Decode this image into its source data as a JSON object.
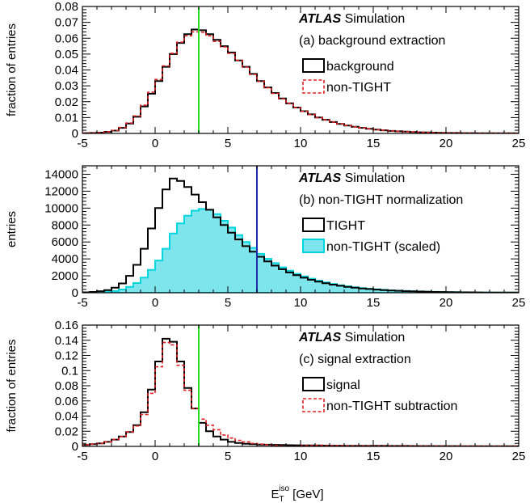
{
  "x_axis_label": {
    "main": "E",
    "sup": "iso",
    "sub": "T",
    "unit": " [GeV]"
  },
  "colors": {
    "green_line": "#22dd22",
    "blue_line": "#1a2fa8",
    "cyan_fill": "#7fe5ec",
    "cyan_edge": "#00d5e0",
    "red_dash": "#e02020"
  },
  "chart_data": [
    {
      "type": "histogram",
      "panel": "a",
      "ylabel": "fraction of entries",
      "xlim": [
        -5,
        25
      ],
      "ylim": [
        0,
        0.08
      ],
      "x_ticks": [
        -5,
        0,
        5,
        10,
        15,
        20,
        25
      ],
      "x_tick_labels": [
        "-5",
        "0",
        "5",
        "10",
        "15",
        "20",
        "25"
      ],
      "y_ticks": [
        0,
        0.01,
        0.02,
        0.03,
        0.04,
        0.05,
        0.06,
        0.07,
        0.08
      ],
      "y_tick_labels": [
        "0",
        "0.01",
        "0.02",
        "0.03",
        "0.04",
        "0.05",
        "0.06",
        "0.07",
        "0.08"
      ],
      "brand": "ATLAS",
      "brand_suffix": " Simulation",
      "annotation": "(a) background extraction",
      "vline": 3,
      "vline_color": "green",
      "bin_edges": [
        -5,
        -4.5,
        -4,
        -3.5,
        -3,
        -2.5,
        -2,
        -1.5,
        -1,
        -0.5,
        0,
        0.5,
        1,
        1.5,
        2,
        2.5,
        3,
        3.5,
        4,
        4.5,
        5,
        5.5,
        6,
        6.5,
        7,
        7.5,
        8,
        8.5,
        9,
        9.5,
        10,
        10.5,
        11,
        11.5,
        12,
        12.5,
        13,
        13.5,
        14,
        14.5,
        15,
        15.5,
        16,
        16.5,
        17,
        17.5,
        18,
        18.5,
        19,
        19.5,
        20,
        20.5,
        21,
        21.5,
        22,
        22.5,
        23,
        23.5,
        24,
        24.5,
        25
      ],
      "series": [
        {
          "name": "background",
          "style": "solid-black",
          "values": [
            0.0002,
            0.0003,
            0.0005,
            0.001,
            0.0018,
            0.0035,
            0.0062,
            0.0105,
            0.017,
            0.025,
            0.033,
            0.042,
            0.05,
            0.057,
            0.0625,
            0.0655,
            0.065,
            0.0625,
            0.059,
            0.055,
            0.051,
            0.046,
            0.042,
            0.0375,
            0.033,
            0.029,
            0.0255,
            0.022,
            0.019,
            0.0163,
            0.014,
            0.012,
            0.0101,
            0.0086,
            0.0072,
            0.006,
            0.005,
            0.0042,
            0.0035,
            0.0029,
            0.0024,
            0.002,
            0.0016,
            0.0013,
            0.0011,
            0.0009,
            0.0007,
            0.0006,
            0.0005,
            0.0004,
            0.0003,
            0.0003,
            0.0002,
            0.0002,
            0.0001,
            0.0001,
            0.0001,
            0.0001,
            0.0001,
            0.0001
          ]
        },
        {
          "name": "non-TIGHT",
          "style": "dashed-red",
          "values": [
            0.0002,
            0.0003,
            0.0005,
            0.0011,
            0.0019,
            0.0037,
            0.0065,
            0.011,
            0.0178,
            0.026,
            0.034,
            0.0425,
            0.0505,
            0.0575,
            0.0615,
            0.064,
            0.0638,
            0.0615,
            0.058,
            0.0545,
            0.0505,
            0.046,
            0.0418,
            0.0372,
            0.0328,
            0.0288,
            0.0252,
            0.0218,
            0.0189,
            0.0162,
            0.0139,
            0.0119,
            0.01,
            0.0085,
            0.0072,
            0.006,
            0.005,
            0.0042,
            0.0035,
            0.0029,
            0.0024,
            0.002,
            0.0016,
            0.0013,
            0.0011,
            0.0009,
            0.0007,
            0.0006,
            0.0005,
            0.0004,
            0.0003,
            0.0003,
            0.0002,
            0.0002,
            0.0001,
            0.0001,
            0.0001,
            0.0001,
            0.0001,
            0.0001
          ]
        }
      ]
    },
    {
      "type": "histogram",
      "panel": "b",
      "ylabel": "entries",
      "xlim": [
        -5,
        25
      ],
      "ylim": [
        0,
        15000
      ],
      "x_ticks": [
        -5,
        0,
        5,
        10,
        15,
        20,
        25
      ],
      "x_tick_labels": [
        "-5",
        "0",
        "5",
        "10",
        "15",
        "20",
        "25"
      ],
      "y_ticks": [
        0,
        2000,
        4000,
        6000,
        8000,
        10000,
        12000,
        14000
      ],
      "y_tick_labels": [
        "0",
        "2000",
        "4000",
        "6000",
        "8000",
        "10000",
        "12000",
        "14000"
      ],
      "brand": "ATLAS",
      "brand_suffix": " Simulation",
      "annotation": "(b) non-TIGHT normalization",
      "vline": 7,
      "vline_color": "blue",
      "bin_edges": [
        -5,
        -4.5,
        -4,
        -3.5,
        -3,
        -2.5,
        -2,
        -1.5,
        -1,
        -0.5,
        0,
        0.5,
        1,
        1.5,
        2,
        2.5,
        3,
        3.5,
        4,
        4.5,
        5,
        5.5,
        6,
        6.5,
        7,
        7.5,
        8,
        8.5,
        9,
        9.5,
        10,
        10.5,
        11,
        11.5,
        12,
        12.5,
        13,
        13.5,
        14,
        14.5,
        15,
        15.5,
        16,
        16.5,
        17,
        17.5,
        18,
        18.5,
        19,
        19.5,
        20,
        20.5,
        21,
        21.5,
        22,
        22.5,
        23,
        23.5,
        24,
        24.5,
        25
      ],
      "series": [
        {
          "name": "TIGHT",
          "style": "solid-black",
          "values": [
            50,
            100,
            180,
            320,
            600,
            1100,
            2000,
            3300,
            5200,
            7600,
            10000,
            12200,
            13500,
            13200,
            12500,
            11600,
            10700,
            9800,
            8900,
            8000,
            7100,
            6300,
            5500,
            4850,
            4250,
            3700,
            3200,
            2780,
            2400,
            2070,
            1780,
            1530,
            1310,
            1120,
            960,
            820,
            700,
            600,
            510,
            435,
            370,
            315,
            270,
            230,
            195,
            165,
            140,
            120,
            100,
            85,
            72,
            62,
            52,
            44,
            38,
            32,
            27,
            23,
            20,
            17
          ]
        },
        {
          "name": "non-TIGHT (scaled)",
          "style": "filled-cyan",
          "values": [
            15,
            30,
            60,
            110,
            200,
            380,
            700,
            1150,
            1800,
            2700,
            3800,
            5200,
            7000,
            8200,
            9100,
            9700,
            9900,
            9800,
            9300,
            8500,
            7700,
            6800,
            6000,
            5300,
            4600,
            4000,
            3500,
            3000,
            2600,
            2240,
            1930,
            1660,
            1420,
            1220,
            1040,
            890,
            760,
            650,
            550,
            470,
            400,
            340,
            290,
            245,
            210,
            178,
            150,
            128,
            108,
            92,
            78,
            66,
            56,
            48,
            40,
            34,
            29,
            25,
            21,
            18
          ]
        }
      ]
    },
    {
      "type": "histogram",
      "panel": "c",
      "ylabel": "fraction of entries",
      "xlim": [
        -5,
        25
      ],
      "ylim": [
        0,
        0.16
      ],
      "x_ticks": [
        -5,
        0,
        5,
        10,
        15,
        20,
        25
      ],
      "x_tick_labels": [
        "-5",
        "0",
        "5",
        "10",
        "15",
        "20",
        "25"
      ],
      "y_ticks": [
        0,
        0.02,
        0.04,
        0.06,
        0.08,
        0.1,
        0.12,
        0.14,
        0.16
      ],
      "y_tick_labels": [
        "0",
        "0.02",
        "0.04",
        "0.06",
        "0.08",
        "0.1",
        "0.12",
        "0.14",
        "0.16"
      ],
      "brand": "ATLAS",
      "brand_suffix": " Simulation",
      "annotation": "(c) signal extraction",
      "vline": 3,
      "vline_color": "green",
      "bin_edges": [
        -5,
        -4.5,
        -4,
        -3.5,
        -3,
        -2.5,
        -2,
        -1.5,
        -1,
        -0.5,
        0,
        0.5,
        1,
        1.5,
        2,
        2.5,
        3,
        3.5,
        4,
        4.5,
        5,
        5.5,
        6,
        6.5,
        7,
        7.5,
        8,
        8.5,
        9,
        9.5,
        10,
        10.5,
        11,
        11.5,
        12,
        12.5,
        13,
        13.5,
        14,
        14.5,
        15,
        15.5,
        16,
        16.5,
        17,
        17.5,
        18,
        18.5,
        19,
        19.5,
        20,
        20.5,
        21,
        21.5,
        22,
        22.5,
        23,
        23.5,
        24,
        24.5,
        25
      ],
      "series": [
        {
          "name": "signal",
          "style": "solid-black",
          "values": [
            0.002,
            0.003,
            0.004,
            0.006,
            0.009,
            0.013,
            0.019,
            0.028,
            0.045,
            0.075,
            0.112,
            0.142,
            0.138,
            0.112,
            0.077,
            0.05,
            0.031,
            0.02,
            0.013,
            0.009,
            0.006,
            0.0045,
            0.0035,
            0.003,
            0.0025,
            0.0022,
            0.002,
            0.0018,
            0.0016,
            0.0015,
            0.0014,
            0.0013,
            0.0012,
            0.0011,
            0.001,
            0.001,
            0.0009,
            0.0009,
            0.0008,
            0.0008,
            0.0007,
            0.0007,
            0.0006,
            0.0006,
            0.0006,
            0.0005,
            0.0005,
            0.0005,
            0.0004,
            0.0004,
            0.0004,
            0.0004,
            0.0003,
            0.0003,
            0.0003,
            0.0003,
            0.0003,
            0.0003,
            0.0002,
            0.0002
          ]
        },
        {
          "name": "non-TIGHT subtraction",
          "style": "dashed-red",
          "values": [
            0.002,
            0.003,
            0.004,
            0.006,
            0.009,
            0.013,
            0.019,
            0.027,
            0.042,
            0.07,
            0.105,
            0.137,
            0.134,
            0.107,
            0.074,
            0.05,
            0.036,
            0.028,
            0.022,
            0.015,
            0.011,
            0.008,
            0.006,
            0.004,
            0.003,
            0.002,
            0.001,
            0.0005,
            0,
            0,
            0.001,
            0.001,
            0.0015,
            0.001,
            0.001,
            0.001,
            0.0008,
            0.0008,
            0.0007,
            0.0007,
            0.0006,
            0.0006,
            0.0006,
            0.0005,
            0.0005,
            0.0005,
            0.0004,
            0.0004,
            0.0004,
            0.0004,
            0.0003,
            0.0003,
            0.0003,
            0.0003,
            0.0003,
            0.0002,
            0.0002,
            0.0002,
            0.0002,
            0.0002
          ]
        }
      ]
    }
  ]
}
